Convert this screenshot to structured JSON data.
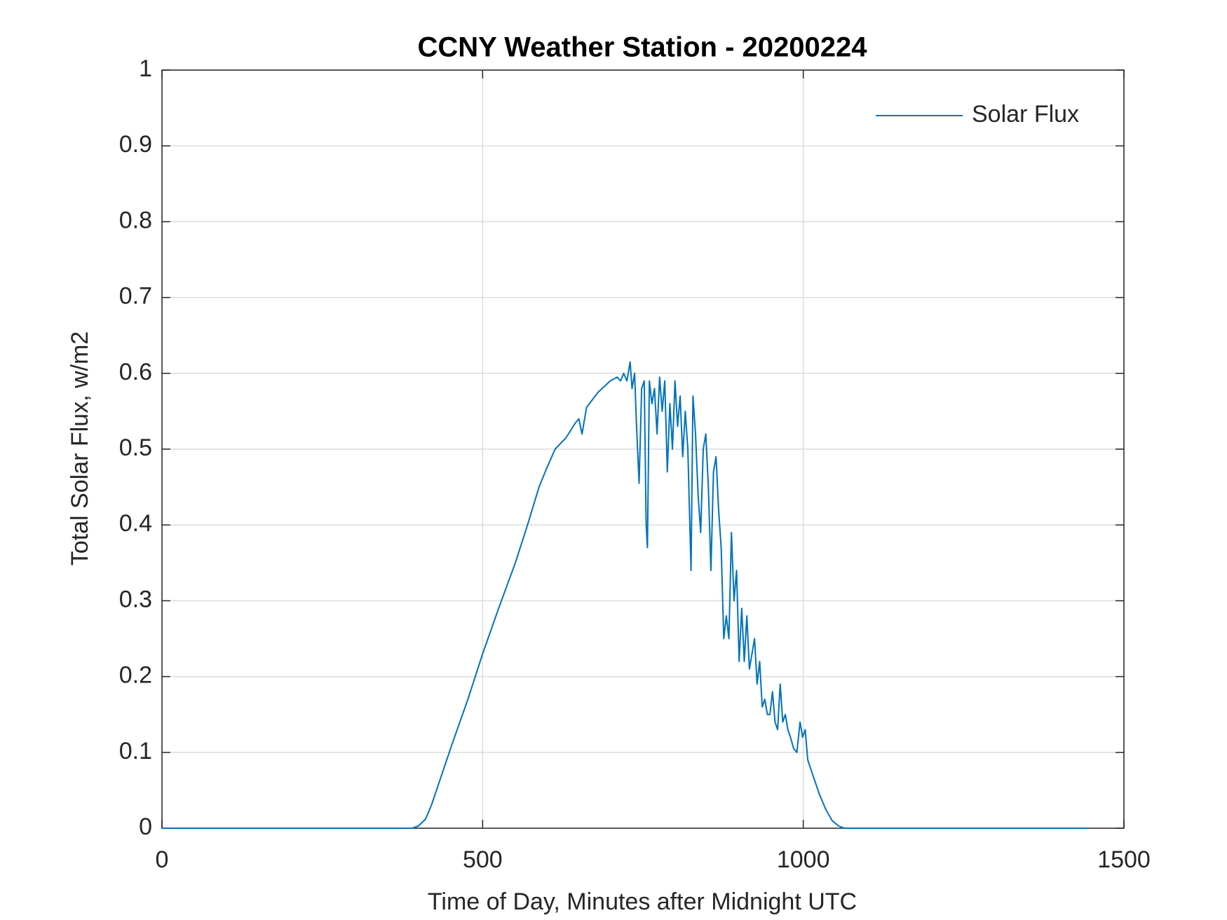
{
  "chart_data": {
    "type": "line",
    "title": "CCNY Weather Station - 20200224",
    "xlabel": "Time of Day, Minutes after Midnight UTC",
    "ylabel": "Total Solar Flux, w/m2",
    "x": [
      0,
      390,
      400,
      411,
      420,
      434,
      452,
      477,
      500,
      525,
      551,
      570,
      588,
      600,
      613,
      630,
      645,
      650,
      655,
      662,
      680,
      699,
      710,
      715,
      720,
      725,
      730,
      733,
      737,
      740,
      744,
      748,
      752,
      755,
      757,
      760,
      764,
      768,
      772,
      776,
      780,
      784,
      788,
      792,
      796,
      800,
      804,
      808,
      812,
      816,
      820,
      825,
      828,
      832,
      836,
      840,
      844,
      848,
      852,
      856,
      860,
      864,
      868,
      872,
      876,
      880,
      884,
      888,
      892,
      896,
      900,
      904,
      908,
      912,
      916,
      920,
      924,
      928,
      932,
      936,
      940,
      944,
      948,
      952,
      956,
      960,
      964,
      968,
      972,
      976,
      980,
      985,
      990,
      995,
      999,
      1003,
      1007,
      1015,
      1025,
      1035,
      1045,
      1055,
      1064,
      1443
    ],
    "series": [
      {
        "name": "Solar Flux",
        "color": "#0072bd",
        "values": [
          0,
          0,
          0.003,
          0.012,
          0.03,
          0.065,
          0.11,
          0.17,
          0.23,
          0.29,
          0.35,
          0.4,
          0.45,
          0.475,
          0.5,
          0.515,
          0.535,
          0.54,
          0.52,
          0.555,
          0.575,
          0.59,
          0.595,
          0.59,
          0.6,
          0.59,
          0.615,
          0.58,
          0.6,
          0.53,
          0.455,
          0.58,
          0.59,
          0.4,
          0.37,
          0.59,
          0.56,
          0.58,
          0.52,
          0.595,
          0.55,
          0.59,
          0.47,
          0.56,
          0.5,
          0.59,
          0.53,
          0.57,
          0.49,
          0.55,
          0.5,
          0.34,
          0.57,
          0.52,
          0.44,
          0.39,
          0.5,
          0.52,
          0.45,
          0.34,
          0.47,
          0.49,
          0.42,
          0.37,
          0.25,
          0.28,
          0.25,
          0.39,
          0.3,
          0.34,
          0.22,
          0.29,
          0.22,
          0.28,
          0.21,
          0.23,
          0.25,
          0.19,
          0.22,
          0.16,
          0.17,
          0.15,
          0.15,
          0.18,
          0.14,
          0.13,
          0.19,
          0.14,
          0.15,
          0.13,
          0.12,
          0.105,
          0.1,
          0.14,
          0.12,
          0.13,
          0.09,
          0.07,
          0.045,
          0.025,
          0.01,
          0.003,
          0,
          0
        ]
      }
    ],
    "xlim": [
      0,
      1500
    ],
    "ylim": [
      0,
      1
    ],
    "xticks": [
      0,
      500,
      1000,
      1500
    ],
    "yticks": [
      0,
      0.1,
      0.2,
      0.3,
      0.4,
      0.5,
      0.6,
      0.7,
      0.8,
      0.9,
      1
    ],
    "grid": true,
    "legend": "upper-right"
  }
}
